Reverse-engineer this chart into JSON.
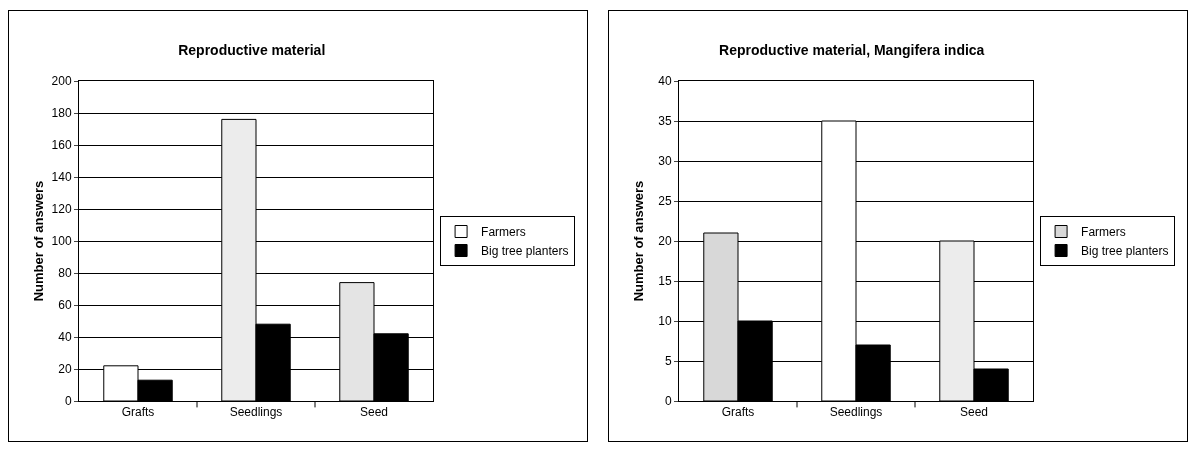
{
  "chart_data": [
    {
      "type": "bar",
      "title": "Reproductive material",
      "ylabel": "Number of answers",
      "categories": [
        "Grafts",
        "Seedlings",
        "Seed"
      ],
      "ylim": [
        0,
        200
      ],
      "yticks": [
        0,
        20,
        40,
        60,
        80,
        100,
        120,
        140,
        160,
        180,
        200
      ],
      "grid": "y",
      "legend": "right",
      "series": [
        {
          "name": "Farmers",
          "colors": [
            "#ffffff",
            "#ececec",
            "#e4e4e4"
          ],
          "values": [
            22,
            176,
            74
          ]
        },
        {
          "name": "Big tree planters",
          "color": "#000000",
          "values": [
            13,
            48,
            42
          ]
        }
      ]
    },
    {
      "type": "bar",
      "title": "Reproductive material, Mangifera indica",
      "ylabel": "Number of answers",
      "categories": [
        "Grafts",
        "Seedlings",
        "Seed"
      ],
      "ylim": [
        0,
        40
      ],
      "yticks": [
        0,
        5,
        10,
        15,
        20,
        25,
        30,
        35,
        40
      ],
      "grid": "y",
      "legend": "right",
      "series": [
        {
          "name": "Farmers",
          "colors": [
            "#d8d8d8",
            "#ffffff",
            "#ececec"
          ],
          "values": [
            21,
            35,
            20
          ]
        },
        {
          "name": "Big tree planters",
          "color": "#000000",
          "values": [
            10,
            7,
            4
          ]
        }
      ]
    }
  ]
}
